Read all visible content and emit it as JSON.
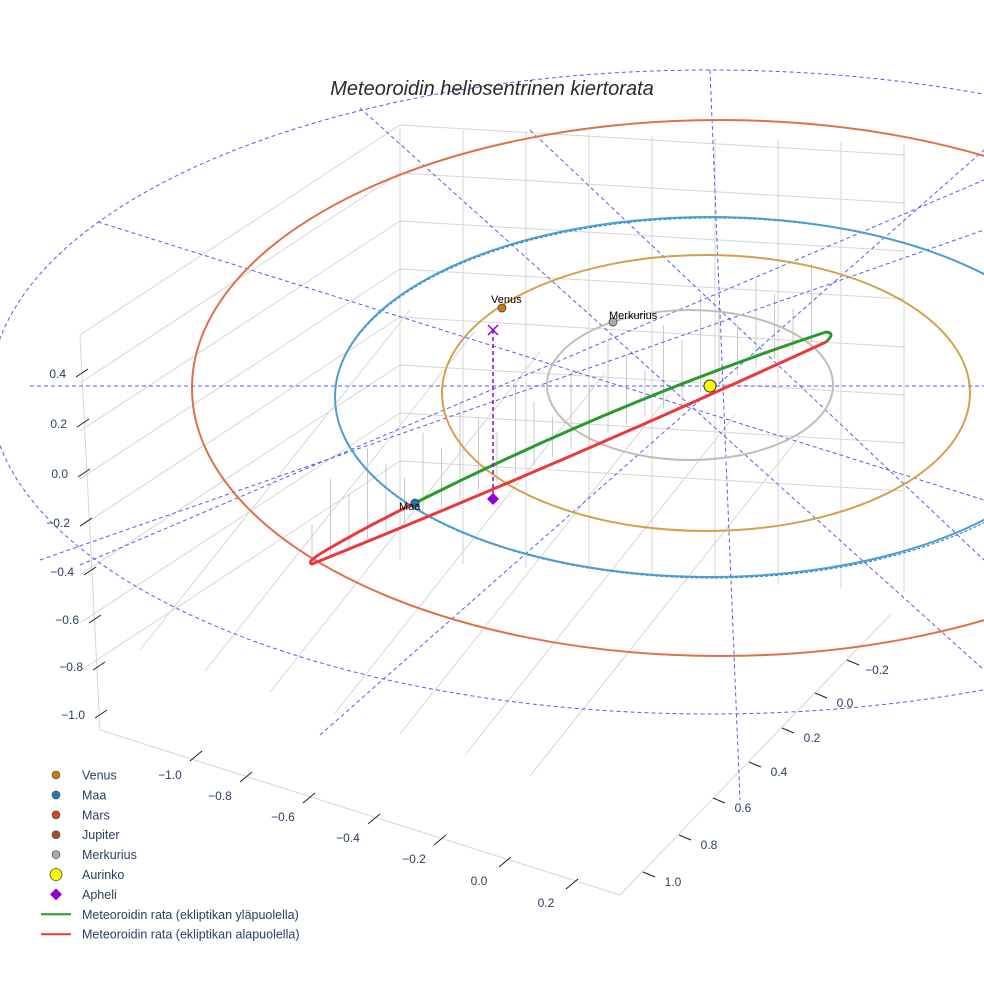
{
  "chart_data": {
    "type": "scatter3d",
    "title": "Meteoroidin heliosentrinen kiertorata",
    "axes": {
      "x": {
        "ticks": [
          "−1.0",
          "−0.8",
          "−0.6",
          "−0.4",
          "−0.2",
          "0.0",
          "0.2"
        ],
        "range": [
          -1.1,
          0.3
        ]
      },
      "y": {
        "ticks": [
          "−0.2",
          "0.0",
          "0.2",
          "0.4",
          "0.6",
          "0.8",
          "1.0"
        ],
        "range": [
          -0.3,
          1.1
        ]
      },
      "z": {
        "ticks": [
          "0.4",
          "0.2",
          "0.0",
          "−0.2",
          "−0.4",
          "−0.6",
          "−0.8",
          "−1.0"
        ],
        "range": [
          -1.1,
          0.5
        ]
      }
    },
    "point_labels": {
      "venus": "Venus",
      "merkurius": "Merkurius",
      "maa": "Maa"
    },
    "legend": [
      {
        "name": "Venus",
        "kind": "dot",
        "color": "#c77a12"
      },
      {
        "name": "Maa",
        "kind": "dot",
        "color": "#1f77b4"
      },
      {
        "name": "Mars",
        "kind": "dot",
        "color": "#d04a1a"
      },
      {
        "name": "Jupiter",
        "kind": "dot",
        "color": "#a0522d"
      },
      {
        "name": "Merkurius",
        "kind": "dot",
        "color": "#b0a8a4"
      },
      {
        "name": "Aurinko",
        "kind": "big-dot",
        "color": "#ffff00"
      },
      {
        "name": "Apheli",
        "kind": "diamond",
        "color": "#9400d3"
      },
      {
        "name": "Meteoroidin rata (ekliptikan yläpuolella)",
        "kind": "line",
        "color": "#2a9a2a"
      },
      {
        "name": "Meteoroidin rata (ekliptikan alapuolella)",
        "kind": "line",
        "color": "#e83a3a"
      }
    ],
    "orbit_colors": {
      "mars": "#e0704a",
      "maa": "#4a9fd0",
      "venus": "#d4a04a",
      "merkurius": "#c4bcb8",
      "reference": "#5a5af0"
    }
  }
}
